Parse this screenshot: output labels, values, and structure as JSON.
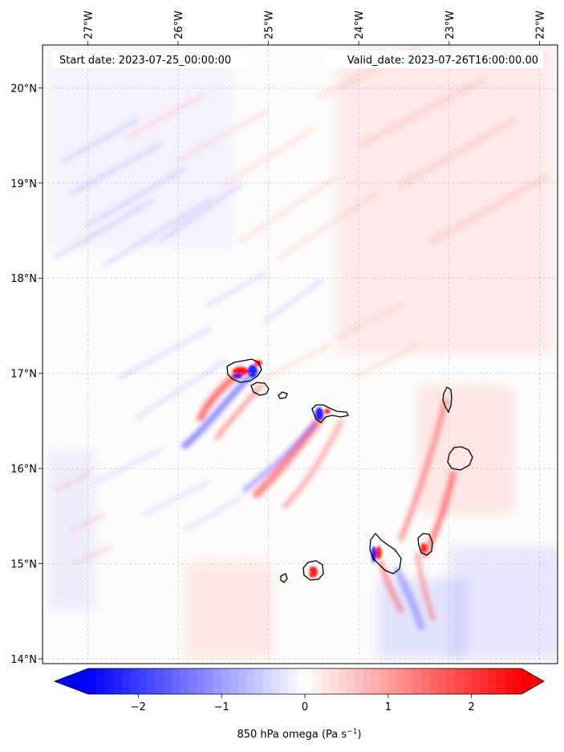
{
  "header": {
    "start_date": "Start date: 2023-07-25_00:00:00",
    "valid_date": "Valid_date: 2023-07-26T16:00:00.00"
  },
  "map": {
    "lon_range": [
      -27.5,
      -21.8
    ],
    "lat_range": [
      13.95,
      20.45
    ],
    "lon_ticks": [
      {
        "value": -27,
        "label": "27°W"
      },
      {
        "value": -26,
        "label": "26°W"
      },
      {
        "value": -25,
        "label": "25°W"
      },
      {
        "value": -24,
        "label": "24°W"
      },
      {
        "value": -23,
        "label": "23°W"
      },
      {
        "value": -22,
        "label": "22°W"
      }
    ],
    "lat_ticks": [
      {
        "value": 20,
        "label": "20°N"
      },
      {
        "value": 19,
        "label": "19°N"
      },
      {
        "value": 18,
        "label": "18°N"
      },
      {
        "value": 17,
        "label": "17°N"
      },
      {
        "value": 16,
        "label": "16°N"
      },
      {
        "value": 15,
        "label": "15°N"
      },
      {
        "value": 14,
        "label": "14°N"
      }
    ],
    "gridlines": true,
    "islands": [
      {
        "name": "santo-antao",
        "center": [
          -25.15,
          17.0
        ]
      },
      {
        "name": "sao-vicente",
        "center": [
          -24.95,
          16.84
        ]
      },
      {
        "name": "santa-luzia",
        "center": [
          -24.73,
          16.77
        ]
      },
      {
        "name": "sao-nicolau",
        "center": [
          -24.25,
          16.6
        ]
      },
      {
        "name": "sal",
        "center": [
          -22.93,
          16.72
        ]
      },
      {
        "name": "boa-vista",
        "center": [
          -22.8,
          16.1
        ]
      },
      {
        "name": "maio",
        "center": [
          -23.17,
          15.2
        ]
      },
      {
        "name": "santiago",
        "center": [
          -23.6,
          15.08
        ]
      },
      {
        "name": "fogo",
        "center": [
          -24.38,
          14.92
        ]
      },
      {
        "name": "brava",
        "center": [
          -24.7,
          14.85
        ]
      }
    ],
    "field_colors": {
      "negative": "#0000ff",
      "neutral": "#ffffff",
      "positive": "#ff0000"
    }
  },
  "colorbar": {
    "range": [
      -2.6,
      2.6
    ],
    "ticks": [
      {
        "value": -2,
        "label": "−2"
      },
      {
        "value": -1,
        "label": "−1"
      },
      {
        "value": 0,
        "label": "0"
      },
      {
        "value": 1,
        "label": "1"
      },
      {
        "value": 2,
        "label": "2"
      }
    ],
    "label": "850 hPa omega (Pa s",
    "label_sup": "−1",
    "label_close": ")",
    "extend": "both"
  }
}
